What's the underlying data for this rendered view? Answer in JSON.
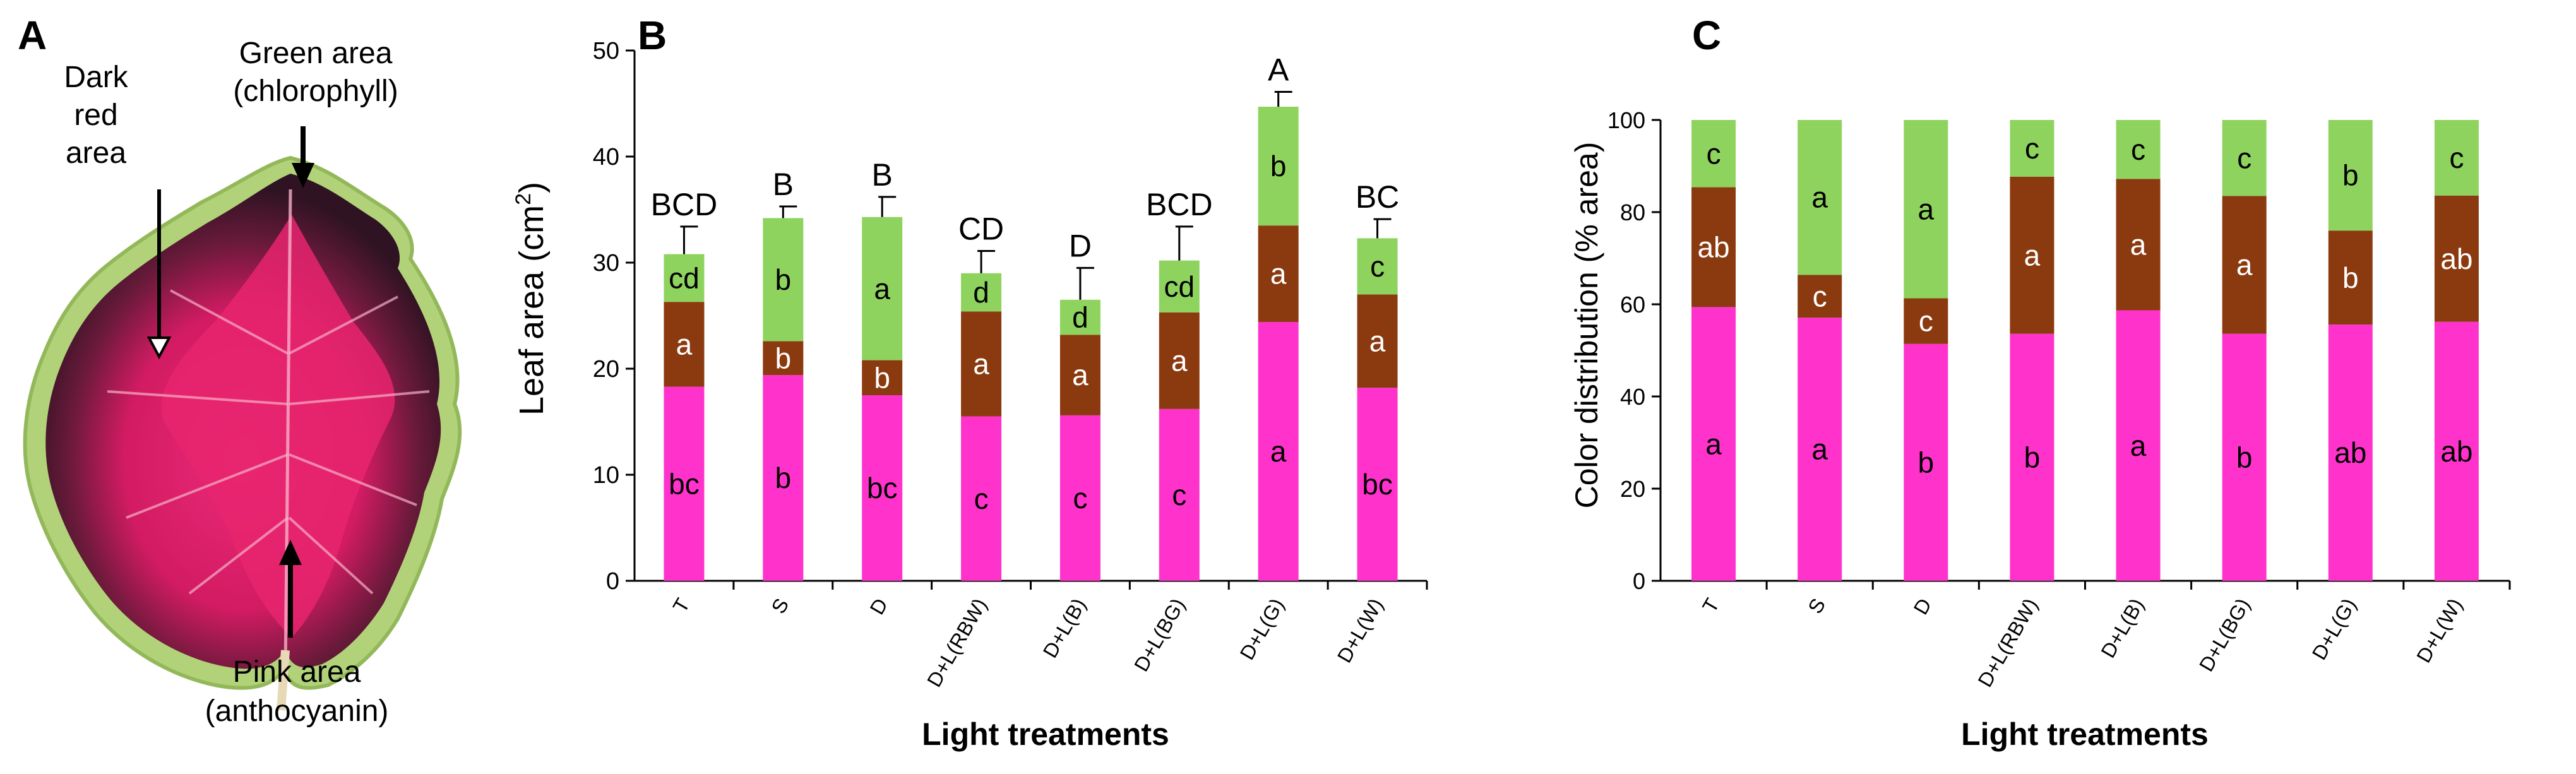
{
  "colors": {
    "pink": "#ff33cc",
    "brown": "#8b3a0f",
    "green": "#8fd35f",
    "axis": "#000000",
    "leaf_dark": "#3a1425",
    "leaf_red": "#c0145a",
    "leaf_pink": "#e8246f",
    "leaf_edge": "#a8cf6a"
  },
  "panel_a": {
    "label": "A",
    "ann_dark_red": [
      "Dark",
      "red",
      "area"
    ],
    "ann_green": [
      "Green area",
      "(chlorophyll)"
    ],
    "ann_pink": [
      "Pink area",
      "(anthocyanin)"
    ]
  },
  "chart_data": [
    {
      "panel": "B",
      "type": "bar",
      "stacked": true,
      "categories": [
        "T",
        "S",
        "D",
        "D+L(RBW)",
        "D+L(B)",
        "D+L(BG)",
        "D+L(G)",
        "D+L(W)"
      ],
      "series": [
        {
          "name": "Pink area (anthocyanin)",
          "color": "pink",
          "values": [
            18.3,
            19.4,
            17.5,
            15.5,
            15.6,
            16.2,
            24.4,
            18.2
          ],
          "letters": [
            "bc",
            "b",
            "bc",
            "c",
            "c",
            "c",
            "a",
            "bc"
          ]
        },
        {
          "name": "Dark red area",
          "color": "brown",
          "values": [
            8.0,
            3.2,
            3.3,
            9.9,
            7.6,
            9.1,
            9.1,
            8.8
          ],
          "letters": [
            "a",
            "b",
            "b",
            "a",
            "a",
            "a",
            "a",
            "a"
          ]
        },
        {
          "name": "Green area (chlorophyll)",
          "color": "green",
          "values": [
            4.5,
            11.6,
            13.5,
            3.6,
            3.3,
            4.9,
            11.2,
            5.3
          ],
          "letters": [
            "cd",
            "b",
            "a",
            "d",
            "d",
            "cd",
            "b",
            "c"
          ]
        }
      ],
      "totals": [
        30.8,
        34.2,
        34.3,
        29.0,
        26.5,
        30.2,
        44.7,
        32.3
      ],
      "errors": [
        2.6,
        1.1,
        1.9,
        2.1,
        3.0,
        3.2,
        1.4,
        1.8
      ],
      "total_letters": [
        "BCD",
        "B",
        "B",
        "CD",
        "D",
        "BCD",
        "A",
        "BC"
      ],
      "ylim": [
        0,
        50
      ],
      "yticks": [
        0,
        10,
        20,
        30,
        40,
        50
      ],
      "ylabel_text": "Leaf area (cm",
      "ylabel_sup": "2",
      "ylabel_close": ")",
      "xlabel": "Light treatments",
      "title": "B"
    },
    {
      "panel": "C",
      "type": "bar",
      "stacked": true,
      "categories": [
        "T",
        "S",
        "D",
        "D+L(RBW)",
        "D+L(B)",
        "D+L(BG)",
        "D+L(G)",
        "D+L(W)"
      ],
      "series": [
        {
          "name": "Pink area (anthocyanin)",
          "color": "pink",
          "values": [
            59.4,
            57.1,
            51.4,
            53.6,
            58.7,
            53.6,
            55.6,
            56.2
          ],
          "letters": [
            "a",
            "a",
            "b",
            "b",
            "a",
            "b",
            "ab",
            "ab"
          ]
        },
        {
          "name": "Dark red area",
          "color": "brown",
          "values": [
            26.0,
            9.3,
            9.9,
            34.1,
            28.5,
            29.9,
            20.4,
            27.4
          ],
          "letters": [
            "ab",
            "c",
            "c",
            "a",
            "a",
            "a",
            "b",
            "ab"
          ]
        },
        {
          "name": "Green area (chlorophyll)",
          "color": "green",
          "values": [
            14.6,
            33.6,
            38.7,
            12.3,
            12.8,
            16.5,
            24.0,
            16.4
          ],
          "letters": [
            "c",
            "a",
            "a",
            "c",
            "c",
            "c",
            "b",
            "c"
          ]
        }
      ],
      "ylim": [
        0,
        100
      ],
      "yticks": [
        0,
        20,
        40,
        60,
        80,
        100
      ],
      "ylabel": "Color distribution (% area)",
      "xlabel": "Light treatments",
      "title": "C"
    }
  ]
}
